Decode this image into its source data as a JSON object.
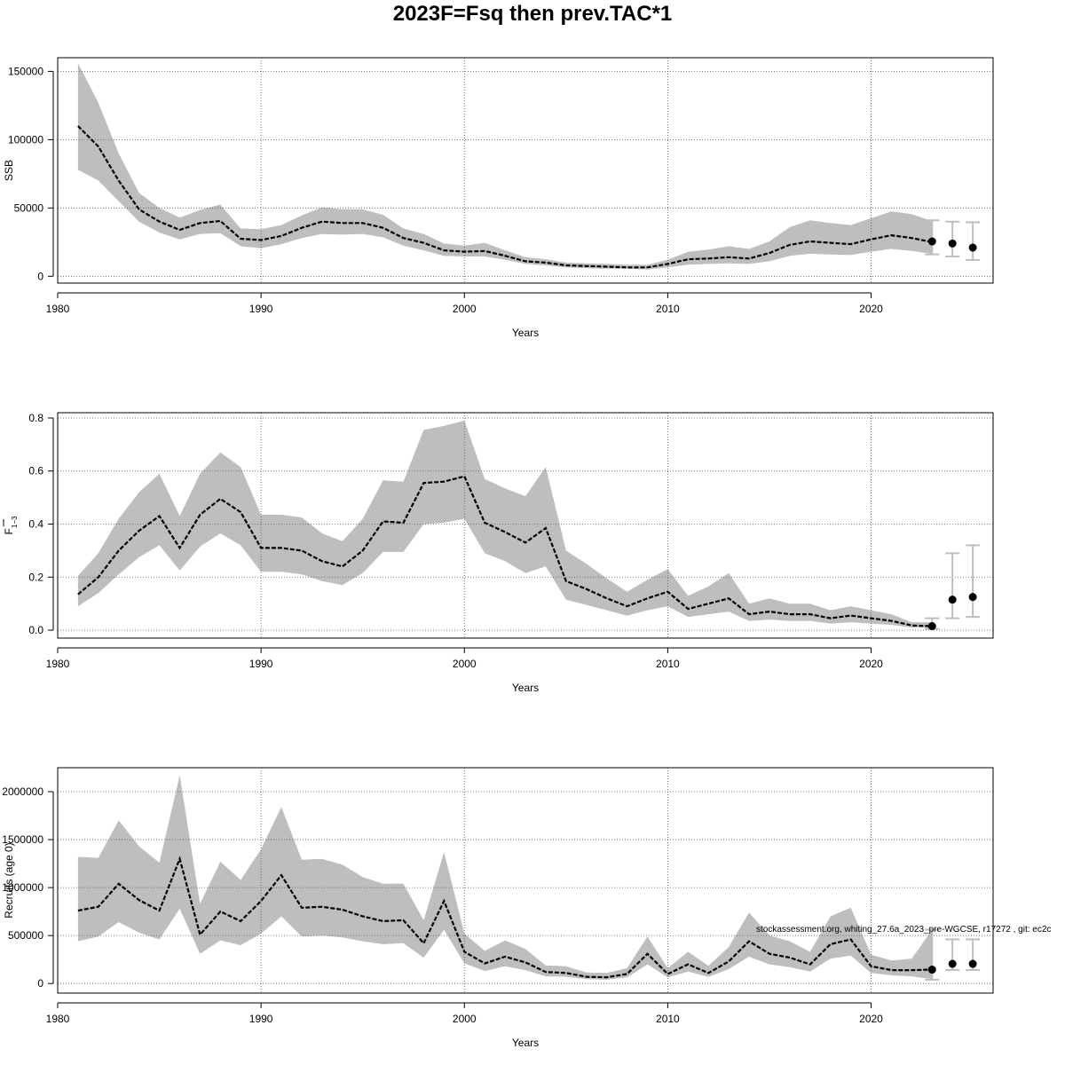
{
  "title": "2023F=Fsq then prev.TAC*1",
  "footnote": "stockassessment.org, whiting_27.6a_2023_pre-WGCSE, r17272 , git: ec2c",
  "colors": {
    "band": "#bebebe",
    "line": "#000000",
    "grid": "#555555",
    "errorbar": "#bebebe"
  },
  "chart_data": [
    {
      "type": "line",
      "name": "ssb",
      "ylabel": "SSB",
      "ylabel_sub": "",
      "xlabel": "Years",
      "xlim": [
        1980,
        2026
      ],
      "ylim": [
        -5000,
        160000
      ],
      "xticks": [
        1980,
        1990,
        2000,
        2010,
        2020
      ],
      "yticks": [
        0,
        50000,
        100000,
        150000
      ],
      "ytick_labels": [
        "0",
        "50000",
        "100000",
        "150000"
      ],
      "x": [
        1981,
        1982,
        1983,
        1984,
        1985,
        1986,
        1987,
        1988,
        1989,
        1990,
        1991,
        1992,
        1993,
        1994,
        1995,
        1996,
        1997,
        1998,
        1999,
        2000,
        2001,
        2002,
        2003,
        2004,
        2005,
        2006,
        2007,
        2008,
        2009,
        2010,
        2011,
        2012,
        2013,
        2014,
        2015,
        2016,
        2017,
        2018,
        2019,
        2020,
        2021,
        2022,
        2023
      ],
      "values": [
        110000,
        95000,
        70000,
        49000,
        40000,
        34000,
        39000,
        40500,
        27500,
        26500,
        29500,
        35500,
        40000,
        39000,
        39000,
        35500,
        28000,
        24500,
        19000,
        18000,
        18500,
        15000,
        11000,
        10000,
        8000,
        7500,
        7000,
        6500,
        6500,
        9000,
        12500,
        13000,
        14000,
        13000,
        17000,
        23000,
        25500,
        24500,
        23500,
        27000,
        30000,
        28000,
        25000
      ],
      "lower": [
        78000,
        70000,
        55000,
        40000,
        32000,
        27000,
        31000,
        31500,
        22000,
        20500,
        23500,
        28000,
        31000,
        30500,
        31000,
        28500,
        22500,
        19000,
        15000,
        14500,
        14500,
        12000,
        9000,
        8000,
        6500,
        6000,
        5500,
        5500,
        5000,
        6500,
        8500,
        9000,
        9500,
        9000,
        11000,
        15000,
        16500,
        16000,
        15500,
        18000,
        20000,
        18500,
        16500
      ],
      "upper": [
        156000,
        127000,
        90000,
        61000,
        50000,
        43000,
        48500,
        52500,
        35000,
        34500,
        37500,
        44500,
        50500,
        49000,
        49000,
        45000,
        35000,
        31000,
        24000,
        22500,
        24500,
        19000,
        14000,
        12500,
        10000,
        9500,
        9000,
        8500,
        8500,
        12000,
        18000,
        19500,
        22000,
        20000,
        25500,
        36000,
        41000,
        39000,
        37500,
        42500,
        47500,
        45500,
        40500
      ],
      "forecast": [
        {
          "x": 2023,
          "value": 25500,
          "low": 16000,
          "high": 41000
        },
        {
          "x": 2024,
          "value": 24000,
          "low": 14500,
          "high": 40000
        },
        {
          "x": 2025,
          "value": 21000,
          "low": 12000,
          "high": 39500
        }
      ]
    },
    {
      "type": "line",
      "name": "fbar",
      "ylabel": "F",
      "ylabel_sub": "1−3",
      "xlabel": "Years",
      "xlim": [
        1980,
        2026
      ],
      "ylim": [
        -0.03,
        0.82
      ],
      "xticks": [
        1980,
        1990,
        2000,
        2010,
        2020
      ],
      "yticks": [
        0,
        0.2,
        0.4,
        0.6,
        0.8
      ],
      "ytick_labels": [
        "0.0",
        "0.2",
        "0.4",
        "0.6",
        "0.8"
      ],
      "x": [
        1981,
        1982,
        1983,
        1984,
        1985,
        1986,
        1987,
        1988,
        1989,
        1990,
        1991,
        1992,
        1993,
        1994,
        1995,
        1996,
        1997,
        1998,
        1999,
        2000,
        2001,
        2002,
        2003,
        2004,
        2005,
        2006,
        2007,
        2008,
        2009,
        2010,
        2011,
        2012,
        2013,
        2014,
        2015,
        2016,
        2017,
        2018,
        2019,
        2020,
        2021,
        2022,
        2023
      ],
      "values": [
        0.135,
        0.2,
        0.3,
        0.375,
        0.43,
        0.31,
        0.435,
        0.495,
        0.445,
        0.31,
        0.31,
        0.3,
        0.26,
        0.24,
        0.3,
        0.41,
        0.405,
        0.555,
        0.56,
        0.58,
        0.405,
        0.37,
        0.33,
        0.385,
        0.185,
        0.155,
        0.12,
        0.09,
        0.12,
        0.145,
        0.08,
        0.1,
        0.12,
        0.06,
        0.07,
        0.06,
        0.06,
        0.045,
        0.055,
        0.045,
        0.035,
        0.018,
        0.015
      ],
      "lower": [
        0.09,
        0.14,
        0.21,
        0.275,
        0.32,
        0.225,
        0.315,
        0.365,
        0.32,
        0.22,
        0.22,
        0.21,
        0.185,
        0.17,
        0.215,
        0.295,
        0.295,
        0.4,
        0.405,
        0.42,
        0.29,
        0.26,
        0.215,
        0.24,
        0.115,
        0.095,
        0.075,
        0.055,
        0.075,
        0.09,
        0.05,
        0.06,
        0.07,
        0.035,
        0.04,
        0.035,
        0.035,
        0.025,
        0.03,
        0.025,
        0.02,
        0.01,
        0.008
      ],
      "upper": [
        0.205,
        0.29,
        0.42,
        0.52,
        0.59,
        0.43,
        0.59,
        0.67,
        0.615,
        0.435,
        0.435,
        0.425,
        0.365,
        0.335,
        0.42,
        0.565,
        0.56,
        0.755,
        0.77,
        0.79,
        0.57,
        0.535,
        0.505,
        0.615,
        0.3,
        0.25,
        0.195,
        0.145,
        0.19,
        0.23,
        0.13,
        0.165,
        0.215,
        0.1,
        0.12,
        0.1,
        0.1,
        0.075,
        0.09,
        0.075,
        0.06,
        0.03,
        0.03
      ],
      "forecast": [
        {
          "x": 2023,
          "value": 0.015,
          "low": 0.005,
          "high": 0.045
        },
        {
          "x": 2024,
          "value": 0.115,
          "low": 0.045,
          "high": 0.29
        },
        {
          "x": 2025,
          "value": 0.125,
          "low": 0.05,
          "high": 0.32
        }
      ]
    },
    {
      "type": "line",
      "name": "recruits",
      "ylabel": "Recruits (age 0)",
      "ylabel_sub": "",
      "xlabel": "Years",
      "xlim": [
        1980,
        2026
      ],
      "ylim": [
        -100000,
        2250000
      ],
      "xticks": [
        1980,
        1990,
        2000,
        2010,
        2020
      ],
      "yticks": [
        0,
        500000,
        1000000,
        1500000,
        2000000
      ],
      "ytick_labels": [
        "0",
        "500000",
        "1000000",
        "1500000",
        "2000000"
      ],
      "x": [
        1981,
        1982,
        1983,
        1984,
        1985,
        1986,
        1987,
        1988,
        1989,
        1990,
        1991,
        1992,
        1993,
        1994,
        1995,
        1996,
        1997,
        1998,
        1999,
        2000,
        2001,
        2002,
        2003,
        2004,
        2005,
        2006,
        2007,
        2008,
        2009,
        2010,
        2011,
        2012,
        2013,
        2014,
        2015,
        2016,
        2017,
        2018,
        2019,
        2020,
        2021,
        2022,
        2023
      ],
      "values": [
        760000,
        800000,
        1040000,
        870000,
        760000,
        1300000,
        510000,
        750000,
        650000,
        860000,
        1130000,
        790000,
        800000,
        770000,
        700000,
        650000,
        660000,
        420000,
        860000,
        330000,
        210000,
        280000,
        220000,
        120000,
        110000,
        70000,
        65000,
        100000,
        310000,
        100000,
        200000,
        110000,
        230000,
        440000,
        310000,
        270000,
        200000,
        410000,
        460000,
        180000,
        140000,
        140000,
        145000
      ],
      "lower": [
        440000,
        490000,
        640000,
        530000,
        460000,
        780000,
        310000,
        450000,
        400000,
        520000,
        700000,
        490000,
        500000,
        480000,
        440000,
        410000,
        420000,
        270000,
        560000,
        210000,
        130000,
        180000,
        140000,
        75000,
        70000,
        45000,
        40000,
        65000,
        200000,
        65000,
        125000,
        70000,
        150000,
        280000,
        200000,
        170000,
        125000,
        260000,
        290000,
        110000,
        85000,
        75000,
        45000
      ],
      "upper": [
        1320000,
        1310000,
        1700000,
        1430000,
        1260000,
        2170000,
        830000,
        1270000,
        1080000,
        1400000,
        1840000,
        1290000,
        1300000,
        1240000,
        1110000,
        1040000,
        1040000,
        660000,
        1370000,
        520000,
        340000,
        450000,
        360000,
        190000,
        180000,
        115000,
        110000,
        160000,
        490000,
        160000,
        330000,
        185000,
        380000,
        740000,
        500000,
        440000,
        330000,
        700000,
        790000,
        300000,
        240000,
        260000,
        560000
      ],
      "forecast": [
        {
          "x": 2023,
          "value": 145000,
          "low": 40000,
          "high": 560000
        },
        {
          "x": 2024,
          "value": 205000,
          "low": 140000,
          "high": 460000
        },
        {
          "x": 2025,
          "value": 205000,
          "low": 140000,
          "high": 460000
        }
      ]
    }
  ]
}
